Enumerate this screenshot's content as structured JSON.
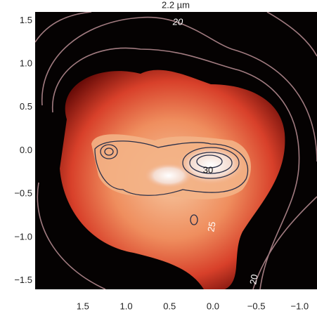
{
  "chart_data": {
    "type": "image",
    "title": "2.2 µm",
    "xlim": [
      2.05,
      -1.2
    ],
    "ylim": [
      -1.6,
      1.6
    ],
    "xticks": [
      1.5,
      {
        "value": 1.0,
        "label": "1.0"
      },
      0.5,
      {
        "value": 0.0,
        "label": "0.0"
      },
      {
        "value": -0.5,
        "label": "−0.5"
      },
      {
        "value": -1.0,
        "label": "−1.0"
      }
    ],
    "yticks": [
      1.5,
      {
        "value": 1.0,
        "label": "1.0"
      },
      0.5,
      {
        "value": 0.0,
        "label": "0.0"
      },
      {
        "value": -0.5,
        "label": "−0.5"
      },
      {
        "value": -1.0,
        "label": "−1.0"
      },
      {
        "value": -1.5,
        "label": "−1.5"
      }
    ],
    "annotations": [
      "20",
      "30",
      "25",
      "20"
    ]
  }
}
